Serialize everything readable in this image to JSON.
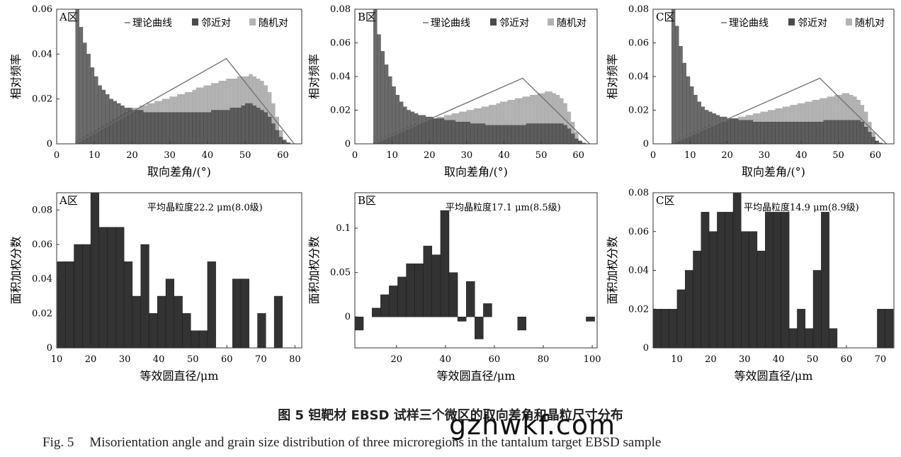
{
  "figure": {
    "caption_cn": "图 5   钽靶材 EBSD 试样三个微区的取向差角和晶粒尺寸分布",
    "caption_en_label": "Fig. 5",
    "caption_en": "Misorientation angle and grain size distribution of three microregions in the tantalum target EBSD sample",
    "watermark": "gzhwkf.com"
  },
  "colors": {
    "neighbor": "#4a4a4a",
    "random": "#b3b3b3",
    "curve": "#6e6e6e",
    "grain_bar": "#333333"
  },
  "legend": {
    "theory": "理论曲线",
    "neighbor": "邻近对",
    "random": "随机对"
  },
  "chart_data": [
    {
      "type": "bar",
      "region": "A区",
      "xlabel": "取向差角/(°)",
      "ylabel": "相对频率",
      "xlim": [
        0,
        65
      ],
      "ylim": [
        0,
        0.06
      ],
      "xticks": [
        0,
        10,
        20,
        30,
        40,
        50,
        60
      ],
      "yticks": [
        0,
        0.02,
        0.04,
        0.06
      ],
      "ytick_labels": [
        "0",
        "0.02",
        "0.04",
        "0.06"
      ],
      "theory_curve": {
        "x": [
          5,
          45,
          63
        ],
        "y": [
          0,
          0.038,
          0
        ]
      },
      "series": [
        {
          "name": "邻近对",
          "x_start": 5,
          "bin": 1,
          "values": [
            0.06,
            0.052,
            0.045,
            0.04,
            0.034,
            0.03,
            0.026,
            0.024,
            0.022,
            0.02,
            0.019,
            0.018,
            0.017,
            0.016,
            0.016,
            0.015,
            0.015,
            0.015,
            0.014,
            0.014,
            0.014,
            0.014,
            0.014,
            0.014,
            0.014,
            0.014,
            0.014,
            0.014,
            0.014,
            0.014,
            0.014,
            0.014,
            0.014,
            0.014,
            0.014,
            0.014,
            0.015,
            0.015,
            0.015,
            0.015,
            0.015,
            0.016,
            0.016,
            0.016,
            0.017,
            0.018,
            0.018,
            0.017,
            0.016,
            0.015,
            0.014,
            0.012,
            0.009,
            0.006,
            0.003,
            0.0015,
            0.0005
          ]
        },
        {
          "name": "随机对",
          "x_start": 5,
          "bin": 1,
          "values": [
            0.001,
            0.002,
            0.003,
            0.004,
            0.005,
            0.006,
            0.007,
            0.008,
            0.009,
            0.01,
            0.011,
            0.012,
            0.013,
            0.014,
            0.015,
            0.016,
            0.016,
            0.017,
            0.017,
            0.018,
            0.018,
            0.019,
            0.019,
            0.02,
            0.02,
            0.021,
            0.021,
            0.022,
            0.022,
            0.023,
            0.023,
            0.024,
            0.025,
            0.025,
            0.026,
            0.026,
            0.027,
            0.027,
            0.028,
            0.028,
            0.029,
            0.029,
            0.029,
            0.03,
            0.03,
            0.03,
            0.031,
            0.03,
            0.029,
            0.028,
            0.026,
            0.023,
            0.018,
            0.012,
            0.006,
            0.002,
            0.0005
          ]
        }
      ]
    },
    {
      "type": "bar",
      "region": "B区",
      "xlabel": "取向差角/(°)",
      "ylabel": "相对频率",
      "xlim": [
        0,
        65
      ],
      "ylim": [
        0,
        0.08
      ],
      "xticks": [
        0,
        10,
        20,
        30,
        40,
        50,
        60
      ],
      "yticks": [
        0,
        0.02,
        0.04,
        0.06,
        0.08
      ],
      "ytick_labels": [
        "0",
        "0.02",
        "0.04",
        "0.06",
        "0.08"
      ],
      "theory_curve": {
        "x": [
          5,
          45,
          63
        ],
        "y": [
          0,
          0.039,
          0
        ]
      },
      "series": [
        {
          "name": "邻近对",
          "x_start": 5,
          "bin": 1,
          "values": [
            0.08,
            0.065,
            0.055,
            0.047,
            0.04,
            0.034,
            0.029,
            0.025,
            0.022,
            0.02,
            0.019,
            0.018,
            0.017,
            0.017,
            0.016,
            0.016,
            0.015,
            0.015,
            0.015,
            0.014,
            0.014,
            0.014,
            0.013,
            0.013,
            0.013,
            0.013,
            0.012,
            0.012,
            0.012,
            0.012,
            0.011,
            0.011,
            0.011,
            0.011,
            0.011,
            0.011,
            0.011,
            0.011,
            0.011,
            0.011,
            0.011,
            0.012,
            0.012,
            0.012,
            0.012,
            0.012,
            0.012,
            0.012,
            0.012,
            0.012,
            0.012,
            0.011,
            0.009,
            0.006,
            0.003,
            0.0015,
            0.0005
          ]
        },
        {
          "name": "随机对",
          "x_start": 5,
          "bin": 1,
          "values": [
            0.001,
            0.002,
            0.003,
            0.004,
            0.005,
            0.006,
            0.007,
            0.008,
            0.009,
            0.01,
            0.011,
            0.012,
            0.012,
            0.013,
            0.014,
            0.015,
            0.015,
            0.016,
            0.016,
            0.017,
            0.017,
            0.018,
            0.018,
            0.019,
            0.019,
            0.02,
            0.02,
            0.021,
            0.021,
            0.022,
            0.022,
            0.023,
            0.023,
            0.024,
            0.025,
            0.025,
            0.026,
            0.026,
            0.027,
            0.027,
            0.028,
            0.028,
            0.029,
            0.029,
            0.03,
            0.03,
            0.031,
            0.031,
            0.03,
            0.029,
            0.027,
            0.024,
            0.019,
            0.013,
            0.007,
            0.002,
            0.0005
          ]
        }
      ]
    },
    {
      "type": "bar",
      "region": "C区",
      "xlabel": "取向差角/(°)",
      "ylabel": "相对频率",
      "xlim": [
        0,
        65
      ],
      "ylim": [
        0,
        0.08
      ],
      "xticks": [
        0,
        10,
        20,
        30,
        40,
        50,
        60
      ],
      "yticks": [
        0,
        0.02,
        0.04,
        0.06,
        0.08
      ],
      "ytick_labels": [
        "0",
        "0.02",
        "0.04",
        "0.06",
        "0.08"
      ],
      "theory_curve": {
        "x": [
          5,
          45,
          63
        ],
        "y": [
          0,
          0.039,
          0
        ]
      },
      "series": [
        {
          "name": "邻近对",
          "x_start": 5,
          "bin": 1,
          "values": [
            0.08,
            0.07,
            0.058,
            0.048,
            0.04,
            0.034,
            0.029,
            0.025,
            0.022,
            0.02,
            0.019,
            0.018,
            0.017,
            0.016,
            0.016,
            0.015,
            0.015,
            0.015,
            0.014,
            0.014,
            0.014,
            0.014,
            0.013,
            0.013,
            0.013,
            0.013,
            0.013,
            0.013,
            0.013,
            0.013,
            0.013,
            0.013,
            0.013,
            0.013,
            0.013,
            0.013,
            0.013,
            0.013,
            0.013,
            0.013,
            0.013,
            0.014,
            0.014,
            0.014,
            0.014,
            0.014,
            0.014,
            0.014,
            0.014,
            0.014,
            0.014,
            0.013,
            0.01,
            0.007,
            0.004,
            0.0015,
            0.0005
          ]
        },
        {
          "name": "随机对",
          "x_start": 5,
          "bin": 1,
          "values": [
            0.001,
            0.002,
            0.003,
            0.004,
            0.005,
            0.006,
            0.007,
            0.008,
            0.009,
            0.01,
            0.011,
            0.011,
            0.012,
            0.013,
            0.013,
            0.014,
            0.015,
            0.015,
            0.016,
            0.016,
            0.017,
            0.017,
            0.018,
            0.018,
            0.019,
            0.019,
            0.02,
            0.02,
            0.021,
            0.021,
            0.022,
            0.022,
            0.023,
            0.023,
            0.024,
            0.024,
            0.025,
            0.025,
            0.026,
            0.026,
            0.027,
            0.027,
            0.028,
            0.028,
            0.029,
            0.029,
            0.03,
            0.03,
            0.029,
            0.028,
            0.026,
            0.023,
            0.019,
            0.013,
            0.007,
            0.002,
            0.0005
          ]
        }
      ]
    },
    {
      "type": "bar",
      "region": "A区",
      "annotation": "平均晶粒度22.2 μm(8.0级)",
      "xlabel": "等效圆直径/μm",
      "ylabel": "面积加权分数",
      "xlim": [
        10,
        82
      ],
      "ylim": [
        0,
        0.09
      ],
      "xticks": [
        10,
        20,
        30,
        40,
        50,
        60,
        70,
        80
      ],
      "yticks": [
        0,
        0.02,
        0.04,
        0.06,
        0.08
      ],
      "ytick_labels": [
        "0",
        "0.02",
        "0.04",
        "0.06",
        "0.08"
      ],
      "x_start": 10.2,
      "bin": 2.45,
      "values": [
        0.05,
        0.05,
        0.06,
        0.06,
        0.09,
        0.07,
        0.07,
        0.07,
        0.05,
        0.03,
        0.06,
        0.02,
        0.03,
        0.04,
        0.03,
        0.02,
        0.01,
        0.01,
        0.05,
        0,
        0,
        0.04,
        0.04,
        0,
        0.02,
        0,
        0.03
      ]
    },
    {
      "type": "bar",
      "region": "B区",
      "annotation": "平均晶粒度17.1 μm(8.5级)",
      "xlabel": "等效圆直径/μm",
      "ylabel": "面积加权分数",
      "xlim": [
        3,
        102
      ],
      "ylim": [
        -0.035,
        0.14
      ],
      "xticks": [
        20,
        40,
        60,
        80,
        100
      ],
      "yticks": [
        0,
        0.05,
        0.1
      ],
      "ytick_labels": [
        "0",
        "0.05",
        "0.1"
      ],
      "x_start": 3,
      "bin": 3.5,
      "values": [
        -0.015,
        0,
        0.01,
        0.025,
        0.035,
        0.045,
        0.06,
        0.06,
        0.08,
        0.07,
        0.12,
        0.05,
        -0.005,
        0.04,
        -0.025,
        0.015,
        0,
        0,
        0,
        -0.015,
        0,
        0,
        0,
        0,
        0,
        0,
        0,
        -0.005
      ]
    },
    {
      "type": "bar",
      "region": "C区",
      "annotation": "平均晶粒度14.9 μm(8.9级)",
      "xlabel": "等效圆直径/μm",
      "ylabel": "面积加权分数",
      "xlim": [
        3,
        74
      ],
      "ylim": [
        0,
        0.08
      ],
      "xticks": [
        10,
        20,
        30,
        40,
        50,
        60,
        70
      ],
      "yticks": [
        0,
        0.02,
        0.04,
        0.06,
        0.08
      ],
      "ytick_labels": [
        "0",
        "0.02",
        "0.04",
        "0.06",
        "0.08"
      ],
      "x_start": 3,
      "bin": 2.36,
      "values": [
        0.02,
        0.02,
        0.02,
        0.03,
        0.04,
        0.05,
        0.07,
        0.06,
        0.07,
        0.07,
        0.08,
        0.06,
        0.06,
        0.05,
        0.07,
        0.07,
        0.07,
        0.01,
        0.02,
        0.01,
        0.04,
        0.07,
        0.01,
        0,
        0,
        0,
        0,
        0,
        0.02,
        0.02
      ]
    }
  ]
}
